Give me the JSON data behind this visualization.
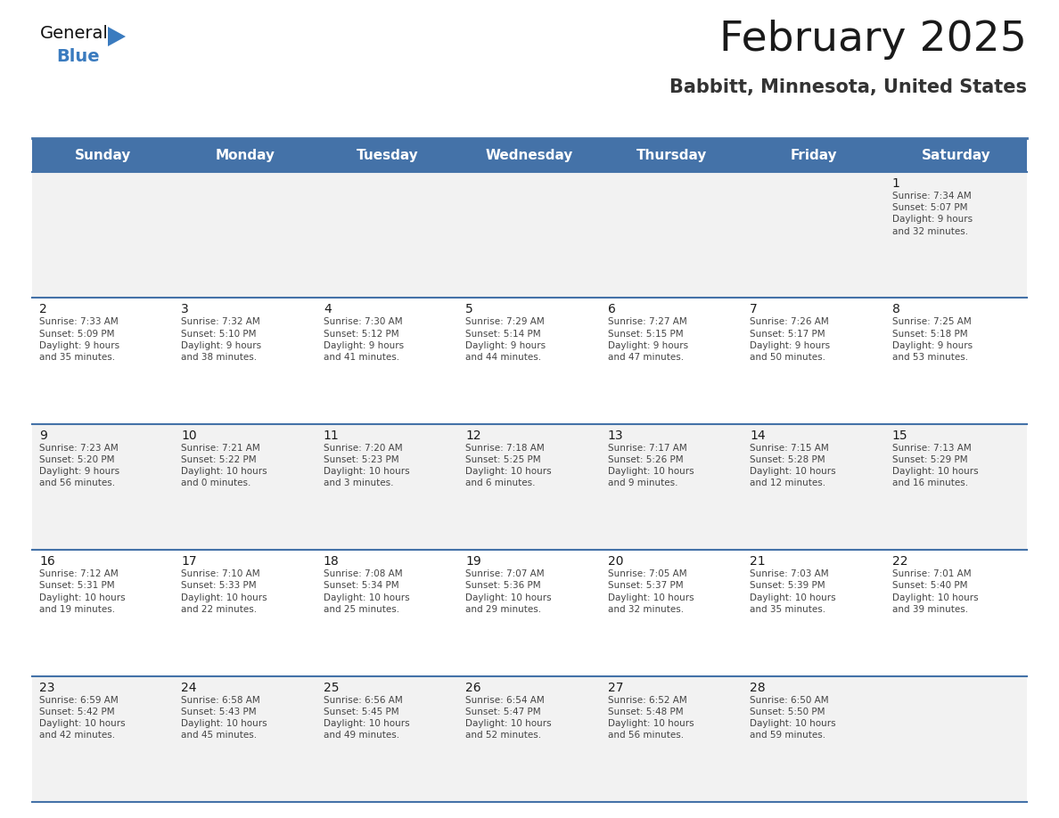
{
  "title": "February 2025",
  "subtitle": "Babbitt, Minnesota, United States",
  "header_bg": "#4472a8",
  "header_text_color": "#ffffff",
  "cell_bg_odd": "#f2f2f2",
  "cell_bg_even": "#ffffff",
  "day_headers": [
    "Sunday",
    "Monday",
    "Tuesday",
    "Wednesday",
    "Thursday",
    "Friday",
    "Saturday"
  ],
  "title_color": "#1a1a1a",
  "subtitle_color": "#333333",
  "cell_text_color": "#444444",
  "day_num_color": "#1a1a1a",
  "border_color": "#4472a8",
  "days": [
    {
      "day": 1,
      "col": 6,
      "row": 0,
      "sunrise": "7:34 AM",
      "sunset": "5:07 PM",
      "daylight": "9 hours\nand 32 minutes."
    },
    {
      "day": 2,
      "col": 0,
      "row": 1,
      "sunrise": "7:33 AM",
      "sunset": "5:09 PM",
      "daylight": "9 hours\nand 35 minutes."
    },
    {
      "day": 3,
      "col": 1,
      "row": 1,
      "sunrise": "7:32 AM",
      "sunset": "5:10 PM",
      "daylight": "9 hours\nand 38 minutes."
    },
    {
      "day": 4,
      "col": 2,
      "row": 1,
      "sunrise": "7:30 AM",
      "sunset": "5:12 PM",
      "daylight": "9 hours\nand 41 minutes."
    },
    {
      "day": 5,
      "col": 3,
      "row": 1,
      "sunrise": "7:29 AM",
      "sunset": "5:14 PM",
      "daylight": "9 hours\nand 44 minutes."
    },
    {
      "day": 6,
      "col": 4,
      "row": 1,
      "sunrise": "7:27 AM",
      "sunset": "5:15 PM",
      "daylight": "9 hours\nand 47 minutes."
    },
    {
      "day": 7,
      "col": 5,
      "row": 1,
      "sunrise": "7:26 AM",
      "sunset": "5:17 PM",
      "daylight": "9 hours\nand 50 minutes."
    },
    {
      "day": 8,
      "col": 6,
      "row": 1,
      "sunrise": "7:25 AM",
      "sunset": "5:18 PM",
      "daylight": "9 hours\nand 53 minutes."
    },
    {
      "day": 9,
      "col": 0,
      "row": 2,
      "sunrise": "7:23 AM",
      "sunset": "5:20 PM",
      "daylight": "9 hours\nand 56 minutes."
    },
    {
      "day": 10,
      "col": 1,
      "row": 2,
      "sunrise": "7:21 AM",
      "sunset": "5:22 PM",
      "daylight": "10 hours\nand 0 minutes."
    },
    {
      "day": 11,
      "col": 2,
      "row": 2,
      "sunrise": "7:20 AM",
      "sunset": "5:23 PM",
      "daylight": "10 hours\nand 3 minutes."
    },
    {
      "day": 12,
      "col": 3,
      "row": 2,
      "sunrise": "7:18 AM",
      "sunset": "5:25 PM",
      "daylight": "10 hours\nand 6 minutes."
    },
    {
      "day": 13,
      "col": 4,
      "row": 2,
      "sunrise": "7:17 AM",
      "sunset": "5:26 PM",
      "daylight": "10 hours\nand 9 minutes."
    },
    {
      "day": 14,
      "col": 5,
      "row": 2,
      "sunrise": "7:15 AM",
      "sunset": "5:28 PM",
      "daylight": "10 hours\nand 12 minutes."
    },
    {
      "day": 15,
      "col": 6,
      "row": 2,
      "sunrise": "7:13 AM",
      "sunset": "5:29 PM",
      "daylight": "10 hours\nand 16 minutes."
    },
    {
      "day": 16,
      "col": 0,
      "row": 3,
      "sunrise": "7:12 AM",
      "sunset": "5:31 PM",
      "daylight": "10 hours\nand 19 minutes."
    },
    {
      "day": 17,
      "col": 1,
      "row": 3,
      "sunrise": "7:10 AM",
      "sunset": "5:33 PM",
      "daylight": "10 hours\nand 22 minutes."
    },
    {
      "day": 18,
      "col": 2,
      "row": 3,
      "sunrise": "7:08 AM",
      "sunset": "5:34 PM",
      "daylight": "10 hours\nand 25 minutes."
    },
    {
      "day": 19,
      "col": 3,
      "row": 3,
      "sunrise": "7:07 AM",
      "sunset": "5:36 PM",
      "daylight": "10 hours\nand 29 minutes."
    },
    {
      "day": 20,
      "col": 4,
      "row": 3,
      "sunrise": "7:05 AM",
      "sunset": "5:37 PM",
      "daylight": "10 hours\nand 32 minutes."
    },
    {
      "day": 21,
      "col": 5,
      "row": 3,
      "sunrise": "7:03 AM",
      "sunset": "5:39 PM",
      "daylight": "10 hours\nand 35 minutes."
    },
    {
      "day": 22,
      "col": 6,
      "row": 3,
      "sunrise": "7:01 AM",
      "sunset": "5:40 PM",
      "daylight": "10 hours\nand 39 minutes."
    },
    {
      "day": 23,
      "col": 0,
      "row": 4,
      "sunrise": "6:59 AM",
      "sunset": "5:42 PM",
      "daylight": "10 hours\nand 42 minutes."
    },
    {
      "day": 24,
      "col": 1,
      "row": 4,
      "sunrise": "6:58 AM",
      "sunset": "5:43 PM",
      "daylight": "10 hours\nand 45 minutes."
    },
    {
      "day": 25,
      "col": 2,
      "row": 4,
      "sunrise": "6:56 AM",
      "sunset": "5:45 PM",
      "daylight": "10 hours\nand 49 minutes."
    },
    {
      "day": 26,
      "col": 3,
      "row": 4,
      "sunrise": "6:54 AM",
      "sunset": "5:47 PM",
      "daylight": "10 hours\nand 52 minutes."
    },
    {
      "day": 27,
      "col": 4,
      "row": 4,
      "sunrise": "6:52 AM",
      "sunset": "5:48 PM",
      "daylight": "10 hours\nand 56 minutes."
    },
    {
      "day": 28,
      "col": 5,
      "row": 4,
      "sunrise": "6:50 AM",
      "sunset": "5:50 PM",
      "daylight": "10 hours\nand 59 minutes."
    }
  ]
}
